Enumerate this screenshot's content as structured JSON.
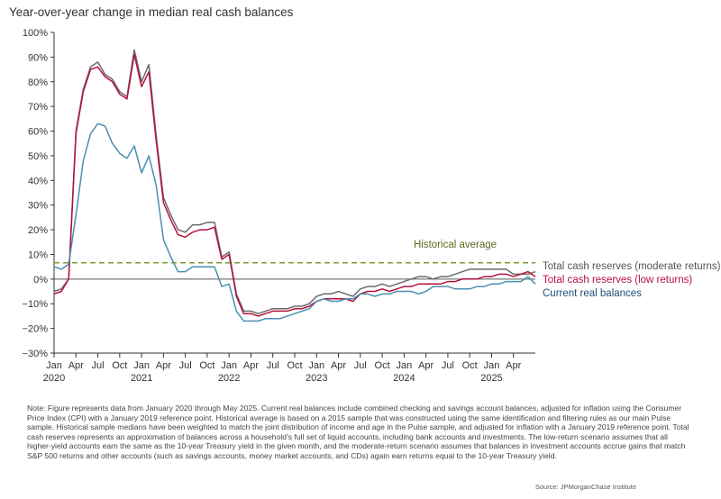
{
  "chart_data": {
    "type": "line",
    "title": "Year-over-year change in median real cash balances",
    "ylim": [
      -30,
      100
    ],
    "yticks": [
      -30,
      -20,
      -10,
      0,
      10,
      20,
      30,
      40,
      50,
      60,
      70,
      80,
      90,
      100
    ],
    "ytick_labels": [
      "−30%",
      "−20%",
      "−10%",
      "0%",
      "10%",
      "20%",
      "30%",
      "40%",
      "50%",
      "60%",
      "70%",
      "80%",
      "90%",
      "100%"
    ],
    "x_tick_labels": [
      {
        "month": "Jan",
        "year": "2020"
      },
      {
        "month": "Apr",
        "year": ""
      },
      {
        "month": "Jul",
        "year": ""
      },
      {
        "month": "Oct",
        "year": ""
      },
      {
        "month": "Jan",
        "year": "2021"
      },
      {
        "month": "Apr",
        "year": ""
      },
      {
        "month": "Jul",
        "year": ""
      },
      {
        "month": "Oct",
        "year": ""
      },
      {
        "month": "Jan",
        "year": "2022"
      },
      {
        "month": "Apr",
        "year": ""
      },
      {
        "month": "Jul",
        "year": ""
      },
      {
        "month": "Oct",
        "year": ""
      },
      {
        "month": "Jan",
        "year": "2023"
      },
      {
        "month": "Apr",
        "year": ""
      },
      {
        "month": "Jul",
        "year": ""
      },
      {
        "month": "Oct",
        "year": ""
      },
      {
        "month": "Jan",
        "year": "2024"
      },
      {
        "month": "Apr",
        "year": ""
      },
      {
        "month": "Jul",
        "year": ""
      },
      {
        "month": "Oct",
        "year": ""
      },
      {
        "month": "Jan",
        "year": "2025"
      },
      {
        "month": "Apr",
        "year": ""
      }
    ],
    "x_start": "Jan 2020",
    "x_end": "May 2025",
    "reference_line": {
      "name": "Historical average",
      "value": 6.6,
      "color": "#7a9a2e"
    },
    "series": [
      {
        "name": "Total cash reserves (moderate returns)",
        "color": "#6b6b6b",
        "values": [
          -5,
          -4,
          0,
          60,
          77,
          86,
          88,
          83,
          81,
          76,
          74,
          93,
          80,
          87,
          58,
          33,
          26,
          20,
          19,
          22,
          22,
          23,
          23,
          9,
          11,
          -6,
          -13,
          -13,
          -14,
          -13,
          -12,
          -12,
          -12,
          -11,
          -11,
          -10,
          -7,
          -6,
          -6,
          -5,
          -6,
          -7,
          -4,
          -3,
          -3,
          -2,
          -3,
          -2,
          -1,
          0,
          1,
          1,
          0,
          1,
          1,
          2,
          3,
          4,
          4,
          4,
          4,
          4,
          4,
          2,
          2,
          2,
          3
        ]
      },
      {
        "name": "Total cash reserves (low returns)",
        "color": "#b5123b",
        "values": [
          -6,
          -5,
          0,
          59,
          76,
          85,
          86,
          82,
          80,
          75,
          73,
          91,
          78,
          84,
          56,
          31,
          24,
          18,
          17,
          19,
          20,
          20,
          21,
          8,
          10,
          -7,
          -14,
          -14,
          -15,
          -14,
          -13,
          -13,
          -13,
          -12,
          -12,
          -11,
          -9,
          -8,
          -8,
          -8,
          -8,
          -9,
          -6,
          -5,
          -5,
          -4,
          -5,
          -4,
          -3,
          -3,
          -2,
          -2,
          -2,
          -2,
          -1,
          -1,
          0,
          0,
          0,
          1,
          1,
          2,
          2,
          1,
          2,
          3,
          1
        ]
      },
      {
        "name": "Current real balances",
        "color": "#4a8fb0",
        "values": [
          5,
          4,
          6,
          26,
          48,
          59,
          63,
          62,
          55,
          51,
          49,
          54,
          43,
          50,
          38,
          16,
          9,
          3,
          3,
          5,
          5,
          5,
          5,
          -3,
          -2,
          -13,
          -17,
          -17,
          -17,
          -16,
          -16,
          -16,
          -15,
          -14,
          -13,
          -12,
          -9,
          -8,
          -9,
          -9,
          -8,
          -8,
          -6,
          -6,
          -7,
          -6,
          -6,
          -5,
          -5,
          -5,
          -6,
          -5,
          -3,
          -3,
          -3,
          -4,
          -4,
          -4,
          -3,
          -3,
          -2,
          -2,
          -1,
          -1,
          -1,
          1,
          -2
        ]
      }
    ]
  },
  "legend": {
    "historical_average": "Historical average",
    "moderate": "Total cash reserves (moderate returns)",
    "low": "Total cash reserves (low returns)",
    "current": "Current real balances"
  },
  "note": "Note: Figure represents data from January 2020 through May 2025. Current real balances include combined checking and savings account balances, adjusted for inflation using the Consumer Price Index (CPI) with a January 2019 reference point. Historical average is based on a 2015 sample that was constructed using the same identification and filtering rules as our main Pulse sample. Historical sample medians have been weighted to match the joint distribution of income and age in the Pulse sample, and adjusted for inflation with a January 2019 reference point. Total cash reserves represents an approximation of balances across a household’s full set of liquid accounts, including bank accounts and investments. The low-return scenario assumes that all higher-yield accounts earn the same as the 10-year Treasury yield in the given month, and the moderate-return scenario assumes that balances in investment accounts accrue gains that match S&P 500 returns and other accounts (such as savings accounts, money market accounts, and CDs) again earn returns equal to the 10-year Treasury yield.",
  "source": "Source: JPMorganChase Institute",
  "colors": {
    "axis": "#333333",
    "legend_moderate": "#555555",
    "legend_low": "#b5123b",
    "legend_current": "#1f4e79",
    "historical_label": "#5b6b1e"
  }
}
